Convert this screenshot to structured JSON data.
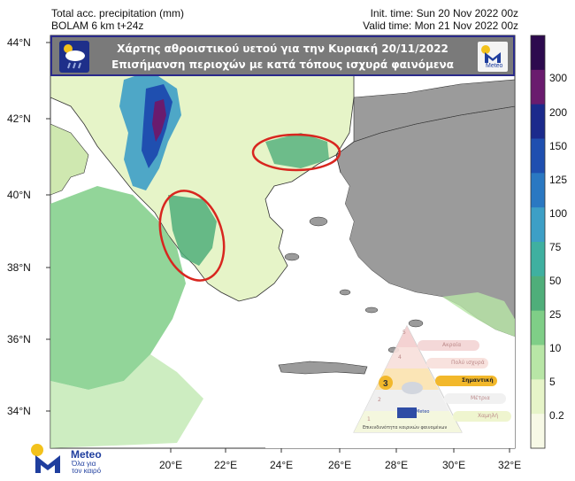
{
  "header": {
    "left_line1": "Total acc. precipitation (mm)",
    "left_line2": "BOLAM 6 km t+24z",
    "right_line1": "Init. time: Sun 20 Nov 2022 00z",
    "right_line2": "Valid time: Mon 21 Nov 2022 00z"
  },
  "banner": {
    "line1": "Χάρτης αθροιστικού υετού για την Κυριακή 20/11/2022",
    "line2": "Επισήμανση περιοχών με κατά τόπους ισχυρά φαινόμενα",
    "logo_text": "Meteo"
  },
  "axes": {
    "lat_labels": [
      "44°N",
      "42°N",
      "40°N",
      "38°N",
      "36°N",
      "34°N"
    ],
    "lon_labels": [
      "20°E",
      "22°E",
      "24°E",
      "26°E",
      "28°E",
      "30°E",
      "32°E"
    ]
  },
  "colorbar": {
    "labels": [
      "300",
      "200",
      "150",
      "125",
      "100",
      "75",
      "50",
      "25",
      "10",
      "5",
      "0.2"
    ],
    "colors": [
      "#2d0a4e",
      "#6a1b6e",
      "#1b2a8c",
      "#1f4fb0",
      "#2a78c2",
      "#3d9fc6",
      "#3fb0a0",
      "#4fae7a",
      "#7fce87",
      "#b8e6a6",
      "#e6f4c8",
      "#f7f9e6"
    ]
  },
  "warning_triangle": {
    "levels": [
      {
        "num": "5",
        "label": "Ακραία"
      },
      {
        "num": "4",
        "label": "Πολύ ισχυρά"
      },
      {
        "num": "3",
        "label": "Σημαντική"
      },
      {
        "num": "2",
        "label": "Μέτρια"
      },
      {
        "num": "1",
        "label": "Χαμηλή"
      }
    ],
    "caption": "Επικινδυνότητα καιρικών φαινομένων",
    "logo_text": "Meteo",
    "active_level": "3"
  },
  "bottom_logo": {
    "brand": "Meteo",
    "slogan": "Όλα για τον καιρό"
  },
  "colors": {
    "sea": "#ffffff",
    "land_outside": "#9b9b9b",
    "low_precip": "#e6f4c8",
    "highlight_ellipse": "#d8261f"
  }
}
